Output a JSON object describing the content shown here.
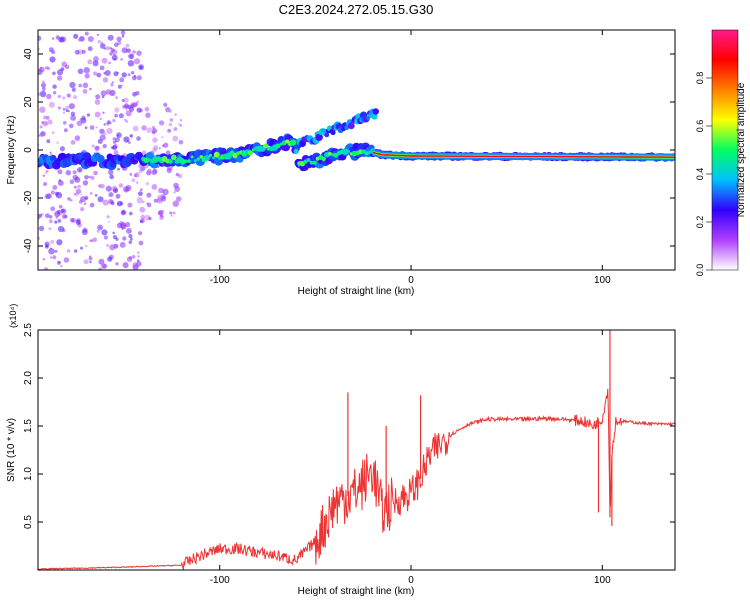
{
  "title": "C2E3.2024.272.05.15.G30",
  "chart_data": [
    {
      "type": "heatmap",
      "xlabel": "Height of straight line (km)",
      "ylabel": "Frequency (Hz)",
      "xlim": [
        -195,
        138
      ],
      "ylim": [
        -50,
        50
      ],
      "xticks": [
        -100,
        0,
        100
      ],
      "yticks": [
        -40,
        -20,
        0,
        20,
        40
      ],
      "colorbar": {
        "label": "Normalized spectral amplitude",
        "range": [
          0,
          1
        ],
        "ticks": [
          "0.0",
          "0.2",
          "0.4",
          "0.6",
          "0.8"
        ],
        "colormap": [
          "#ffffff",
          "#b040ff",
          "#3000ff",
          "#00c0ff",
          "#00ff60",
          "#ffff00",
          "#ff8000",
          "#ff0000",
          "#ff1a8c"
        ]
      },
      "ridge": [
        {
          "x": -195,
          "y": -4.5
        },
        {
          "x": -150,
          "y": -4.5
        },
        {
          "x": -120,
          "y": -4
        },
        {
          "x": -90,
          "y": -2
        },
        {
          "x": -70,
          "y": 2
        },
        {
          "x": -62,
          "y": 4
        },
        {
          "x": -58,
          "y": -6
        },
        {
          "x": -40,
          "y": -2
        },
        {
          "x": -25,
          "y": 0
        },
        {
          "x": -15,
          "y": -2
        },
        {
          "x": 0,
          "y": -2.5
        },
        {
          "x": 138,
          "y": -3
        }
      ],
      "scatter_bands": [
        {
          "x": [
            -195,
            -140
          ],
          "y": [
            -50,
            50
          ],
          "level": 0.15
        },
        {
          "x": [
            -140,
            -120
          ],
          "y": [
            -30,
            20
          ],
          "level": 0.1
        }
      ]
    },
    {
      "type": "line",
      "xlabel": "Height of straight line (km)",
      "ylabel": "SNR (10 * v/v)",
      "y_multiplier": "(x10⁴)",
      "xlim": [
        -195,
        138
      ],
      "ylim": [
        0,
        2.5
      ],
      "xticks": [
        -100,
        0,
        100
      ],
      "yticks": [
        "0.5",
        "1.0",
        "1.5",
        "2.0",
        "2.5"
      ],
      "series": [
        {
          "color": "#ee3333",
          "x": [
            -195,
            -170,
            -150,
            -120,
            -110,
            -100,
            -90,
            -80,
            -70,
            -60,
            -50,
            -45,
            -40,
            -30,
            -25,
            -20,
            -15,
            -10,
            0,
            5,
            10,
            20,
            30,
            40,
            50,
            60,
            70,
            80,
            90,
            95,
            100,
            103,
            104,
            105,
            107,
            110,
            120,
            130,
            138
          ],
          "y": [
            0.01,
            0.02,
            0.03,
            0.05,
            0.15,
            0.22,
            0.22,
            0.18,
            0.15,
            0.1,
            0.3,
            0.48,
            0.7,
            0.8,
            0.9,
            1.05,
            0.6,
            0.7,
            0.8,
            0.95,
            1.2,
            1.4,
            1.52,
            1.57,
            1.57,
            1.57,
            1.58,
            1.57,
            1.55,
            1.5,
            1.58,
            1.9,
            0.55,
            1.2,
            1.55,
            1.55,
            1.53,
            1.52,
            1.52
          ]
        }
      ],
      "spikes": [
        {
          "x": -33,
          "y": 1.85
        },
        {
          "x": -13,
          "y": 1.5
        },
        {
          "x": 5,
          "y": 1.82
        },
        {
          "x": 104,
          "y": 2.5
        },
        {
          "x": 105,
          "y": 0.46
        },
        {
          "x": 98,
          "y": 0.6
        }
      ]
    }
  ]
}
